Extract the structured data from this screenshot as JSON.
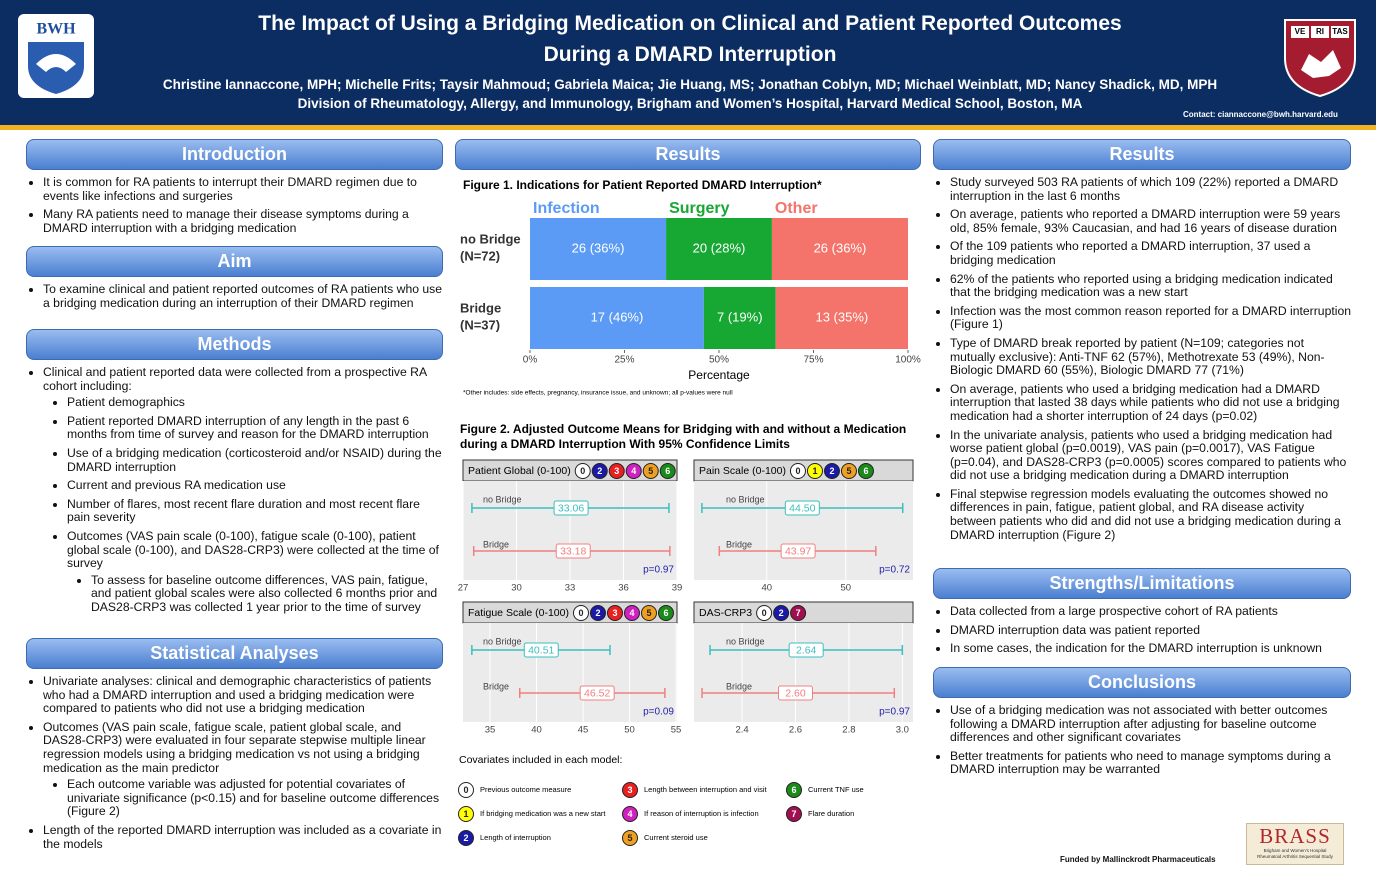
{
  "header": {
    "title": [
      "The Impact of Using a Bridging Medication on Clinical and Patient Reported Outcomes",
      "During a DMARD Interruption"
    ],
    "authors": "Christine Iannaccone, MPH; Michelle Frits; Taysir Mahmoud; Gabriela Maica; Jie Huang, MS; Jonathan Coblyn, MD; Michael Weinblatt, MD; Nancy Shadick, MD, MPH",
    "affiliation": "Division of Rheumatology, Allergy, and Immunology, Brigham and Women’s Hospital, Harvard Medical School, Boston, MA",
    "contact": "Contact: ciannaccone@bwh.harvard.edu",
    "logo_left": "BWH",
    "logo_right": [
      "VE",
      "RI",
      "TAS"
    ]
  },
  "left_column": [
    {
      "heading": "Introduction",
      "items": [
        "It is common for RA patients to interrupt their DMARD regimen due to events like infections and surgeries",
        "Many RA patients need to manage their disease symptoms during a DMARD interruption with a bridging medication"
      ]
    },
    {
      "heading": "Aim",
      "items": [
        "To examine clinical and patient reported outcomes of RA patients who use a bridging medication during an interruption of their DMARD regimen"
      ]
    },
    {
      "heading": "Methods",
      "items": [
        {
          "text": "Clinical and patient reported data were collected from a prospective RA cohort including:",
          "sub": [
            "Patient demographics",
            "Patient reported DMARD interruption of any length in the past 6 months from time of survey and reason for the DMARD interruption",
            "Use of a bridging medication (corticosteroid and/or NSAID) during the DMARD interruption",
            "Current and previous RA medication use",
            "Number of flares, most recent flare duration and most recent flare pain severity",
            {
              "text": "Outcomes (VAS pain scale (0-100), fatigue scale (0-100), patient global scale (0-100), and DAS28-CRP3) were collected at the time of survey",
              "sub": [
                "To assess for baseline outcome differences, VAS pain, fatigue, and patient global scales were also collected 6 months prior and DAS28-CRP3 was collected 1 year prior to the time of survey"
              ]
            }
          ]
        }
      ]
    },
    {
      "heading": "Statistical Analyses",
      "items": [
        "Univariate analyses: clinical and demographic characteristics of patients who had a DMARD interruption and used a bridging medication were compared to patients who did not use a bridging medication",
        {
          "text": "Outcomes (VAS pain scale, fatigue scale, patient global scale, and DAS28-CRP3) were evaluated in four separate stepwise multiple linear regression models using a bridging medication vs not using a bridging medication as the main predictor",
          "sub": [
            "Each outcome variable was adjusted for potential covariates of univariate significance (p<0.15) and for baseline outcome differences (Figure 2)"
          ]
        },
        "Length of the reported DMARD interruption was included as a covariate in the models"
      ]
    }
  ],
  "middle_column": {
    "heading": "Results",
    "figure1": {
      "type": "bar",
      "title": "Figure 1. Indications for Patient Reported DMARD Interruption*",
      "categories": [
        [
          "no Bridge",
          "(N=72)"
        ],
        [
          "Bridge",
          "(N=37)"
        ]
      ],
      "series": [
        {
          "name": "Infection",
          "color": "#5b9bf5",
          "values": [
            36,
            46
          ],
          "value_labels": [
            "26 (36%)",
            "17 (46%)"
          ]
        },
        {
          "name": "Surgery",
          "color": "#16a833",
          "values": [
            28,
            19
          ],
          "value_labels": [
            "20 (28%)",
            "7 (19%)"
          ]
        },
        {
          "name": "Other",
          "color": "#f4736b",
          "values": [
            36,
            35
          ],
          "value_labels": [
            "26 (36%)",
            "13 (35%)"
          ]
        }
      ],
      "xlim": [
        0,
        100
      ],
      "xticks": [
        {
          "value": 0,
          "label": "0%"
        },
        {
          "value": 25,
          "label": "25%"
        },
        {
          "value": 50,
          "label": "50%"
        },
        {
          "value": 75,
          "label": "75%"
        },
        {
          "value": 100,
          "label": "100%"
        }
      ],
      "xlabel": "Percentage",
      "note": "*Other includes: side effects, pregnancy, insurance issue, and unknown; all p-values were null"
    },
    "figure2": {
      "title": [
        "Figure 2. Adjusted Outcome Means for Bridging with and without a Medication",
        "during a DMARD Interruption With 95% Confidence Limits"
      ],
      "group_colors": [
        "#3bbfbf",
        "#f08080"
      ],
      "panels": [
        {
          "title": "Patient Global (0-100)",
          "covariates": [
            "0",
            "2",
            "3",
            "4",
            "5",
            "6"
          ],
          "xlim": [
            27,
            39
          ],
          "xticks": [
            27,
            30,
            33,
            36,
            39
          ],
          "groups": [
            {
              "name": "no Bridge",
              "estimate": 33.06,
              "estimate_label": "33.06",
              "ci": [
                27.5,
                38.55
              ]
            },
            {
              "name": "Bridge",
              "estimate": 33.18,
              "estimate_label": "33.18",
              "ci": [
                27.6,
                38.6
              ]
            }
          ],
          "p_label": "p=0.97"
        },
        {
          "title": "Pain Scale (0-100)",
          "covariates": [
            "0",
            "1",
            "2",
            "5",
            "6"
          ],
          "xlim": [
            30.8,
            58.5
          ],
          "xticks": [
            40,
            50
          ],
          "groups": [
            {
              "name": "no Bridge",
              "estimate": 44.5,
              "estimate_label": "44.50",
              "ci": [
                31.8,
                57.2
              ]
            },
            {
              "name": "Bridge",
              "estimate": 43.97,
              "estimate_label": "43.97",
              "ci": [
                34,
                53.8
              ]
            }
          ],
          "p_label": "p=0.72"
        },
        {
          "title": "Fatigue Scale (0-100)",
          "covariates": [
            "0",
            "2",
            "3",
            "4",
            "5",
            "6"
          ],
          "xlim": [
            32.1,
            55.1
          ],
          "xticks": [
            35,
            40,
            45,
            50,
            55
          ],
          "groups": [
            {
              "name": "no Bridge",
              "estimate": 40.51,
              "estimate_label": "40.51",
              "ci": [
                33.05,
                47.9
              ]
            },
            {
              "name": "Bridge",
              "estimate": 46.52,
              "estimate_label": "46.52",
              "ci": [
                38.2,
                53.8
              ]
            }
          ],
          "p_label": "p=0.09"
        },
        {
          "title": "DAS-CRP3",
          "covariates": [
            "0",
            "2",
            "7"
          ],
          "xlim": [
            2.22,
            3.04
          ],
          "xticks": [
            2.4,
            2.6,
            2.8,
            {
              "value": 3,
              "label": "3.0"
            }
          ],
          "groups": [
            {
              "name": "no Bridge",
              "estimate": 2.64,
              "estimate_label": "2.64",
              "ci": [
                2.28,
                3.0
              ]
            },
            {
              "name": "Bridge",
              "estimate": 2.6,
              "estimate_label": "2.60",
              "ci": [
                2.25,
                2.97
              ]
            }
          ],
          "p_label": "p=0.97"
        }
      ],
      "covariates_title": "Covariates included in each model:",
      "covariates": [
        {
          "key": "0",
          "label": "Previous outcome measure",
          "color": "#ffffff"
        },
        {
          "key": "1",
          "label": "If bridging medication was a new start",
          "color": "#ffff00"
        },
        {
          "key": "2",
          "label": "Length of interruption",
          "color": "#1a1aa6"
        },
        {
          "key": "3",
          "label": "Length between interruption and visit",
          "color": "#e82020"
        },
        {
          "key": "4",
          "label": "If reason of interruption is infection",
          "color": "#d020c0"
        },
        {
          "key": "5",
          "label": "Current steroid use",
          "color": "#f0a020"
        },
        {
          "key": "6",
          "label": "Current TNF use",
          "color": "#1a8a1a"
        },
        {
          "key": "7",
          "label": "Flare duration",
          "color": "#a01050"
        }
      ]
    }
  },
  "right_column": [
    {
      "heading": "Results",
      "items": [
        "Study surveyed 503 RA patients of which 109 (22%) reported a DMARD interruption in the last 6 months",
        "On average, patients who reported a DMARD interruption were 59 years old, 85% female, 93% Caucasian, and had 16 years of disease duration",
        "Of the 109 patients who reported a DMARD interruption, 37 used a bridging medication",
        "62% of the patients who reported using a bridging medication indicated that the bridging medication was a new start",
        "Infection was the most common reason reported for a DMARD interruption (Figure 1)",
        "Type of DMARD break reported by patient (N=109; categories not mutually exclusive): Anti-TNF  62 (57%), Methotrexate 53 (49%), Non-Biologic DMARD 60 (55%), Biologic DMARD 77 (71%)",
        "On average, patients who used a bridging medication had a DMARD interruption that lasted 38 days while patients who did not use a bridging medication had a shorter interruption of 24 days (p=0.02)",
        "In the univariate analysis, patients who used a bridging medication had worse patient global (p=0.0019), VAS pain (p=0.0017), VAS Fatigue (p=0.04), and DAS28-CRP3 (p=0.0005) scores compared to patients who did not use a bridging medication during a DMARD interruption",
        "Final stepwise regression models evaluating the outcomes showed no differences in pain, fatigue, patient global, and RA disease activity between patients who did and did not use a bridging medication during a DMARD interruption (Figure 2)"
      ]
    },
    {
      "heading": "Strengths/Limitations",
      "items": [
        "Data collected from a large prospective cohort of RA patients",
        "DMARD interruption data was patient reported",
        "In some cases, the indication for the DMARD interruption is unknown"
      ]
    },
    {
      "heading": "Conclusions",
      "items": [
        "Use of a bridging medication was not associated with better outcomes following a DMARD interruption after adjusting for baseline outcome differences and other significant covariates",
        "Better treatments for patients who need to manage symptoms during a DMARD interruption may be warranted"
      ]
    }
  ],
  "footer": {
    "funding": "Funded by Mallinckrodt Pharmaceuticals",
    "logo": "BRASS",
    "logo_subtitle": "Brigham and Women’s Hospital Rheumatoid Arthritis Sequential Study"
  }
}
